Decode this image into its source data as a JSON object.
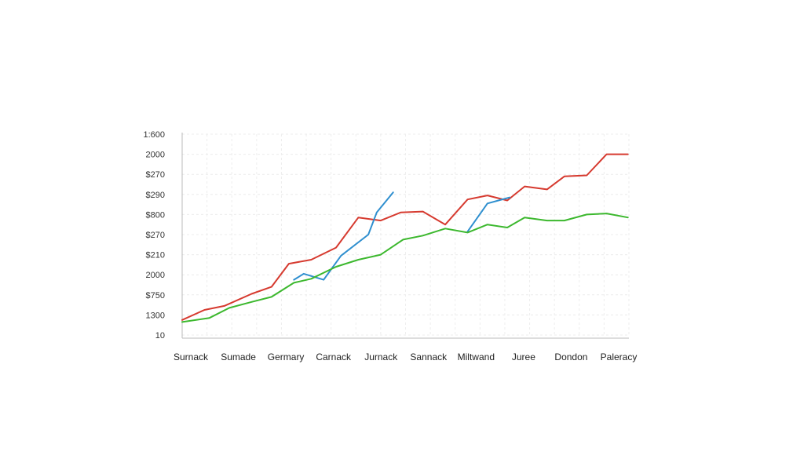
{
  "chart_data": {
    "type": "line",
    "y_tick_labels": [
      "1:600",
      "2000",
      "$270",
      "$290",
      "$800",
      "$270",
      "$210",
      "2000",
      "$750",
      "1300",
      "10"
    ],
    "categories": [
      "Surnack",
      "Sumade",
      "Germary",
      "Carnack",
      "Jurnack",
      "Sannack",
      "Miltwand",
      "Juree",
      "Dondon",
      "Paleracy"
    ],
    "grid": true,
    "legend": "none",
    "series": [
      {
        "color": "#d63a2f",
        "x": [
          0,
          0.45,
          0.85,
          1.4,
          1.8,
          2.15,
          2.6,
          3.1,
          3.55,
          4.0,
          4.4,
          4.85,
          5.3,
          5.75,
          6.15,
          6.55,
          6.9,
          7.35,
          7.7,
          8.15,
          8.55,
          8.98
        ],
        "y": [
          0.75,
          1.25,
          1.45,
          2.05,
          2.4,
          3.55,
          3.75,
          4.35,
          5.85,
          5.7,
          6.1,
          6.15,
          5.5,
          6.75,
          6.95,
          6.7,
          7.4,
          7.25,
          7.9,
          7.95,
          9.0,
          9.0
        ]
      },
      {
        "color": "#2f8fcf",
        "x": [
          2.25,
          2.45,
          2.85,
          3.2,
          3.75,
          3.92,
          4.25
        ],
        "y": [
          2.75,
          3.05,
          2.75,
          3.95,
          5.0,
          6.1,
          7.1
        ]
      },
      {
        "color": "#2f8fcf",
        "x": [
          5.75,
          6.15,
          6.6
        ],
        "y": [
          5.15,
          6.55,
          6.85
        ]
      },
      {
        "color": "#3cb82e",
        "x": [
          0,
          0.55,
          0.95,
          1.4,
          1.8,
          2.25,
          2.6,
          3.1,
          3.55,
          4.0,
          4.45,
          4.85,
          5.3,
          5.75,
          6.15,
          6.55,
          6.9,
          7.35,
          7.7,
          8.15,
          8.55,
          8.98
        ],
        "y": [
          0.65,
          0.85,
          1.35,
          1.65,
          1.9,
          2.6,
          2.8,
          3.4,
          3.75,
          4.0,
          4.75,
          4.95,
          5.3,
          5.1,
          5.5,
          5.35,
          5.85,
          5.7,
          5.7,
          6.0,
          6.05,
          5.85
        ]
      }
    ],
    "xlim": [
      0,
      9
    ],
    "ylim": [
      0,
      10
    ]
  }
}
